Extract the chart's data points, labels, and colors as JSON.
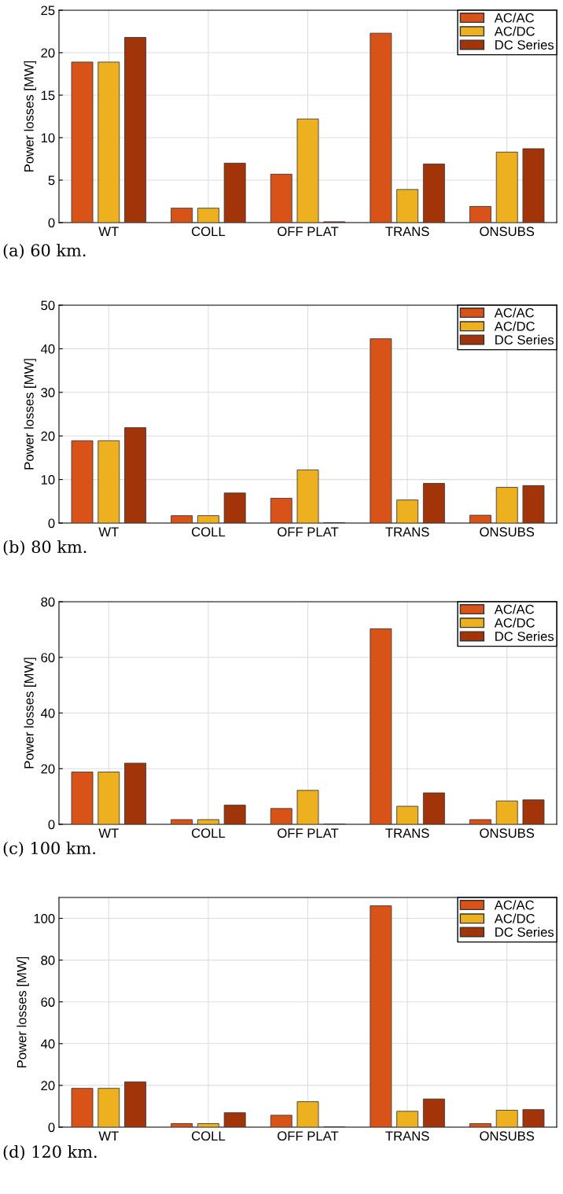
{
  "chart_data": [
    {
      "type": "bar",
      "categories": [
        "WT",
        "COLL",
        "OFF PLAT",
        "TRANS",
        "ONSUBS"
      ],
      "ylabel": "Power losses [MW]",
      "ylim": [
        0,
        25
      ],
      "yticks": [
        0,
        5,
        10,
        15,
        20,
        25
      ],
      "grid": true,
      "legend": "top right",
      "annotations": [
        "(a) 60 km."
      ],
      "series": [
        {
          "name": "AC/AC",
          "color": "#d95319",
          "values": [
            18.9,
            1.7,
            5.7,
            22.3,
            1.9
          ]
        },
        {
          "name": "AC/DC",
          "color": "#edb120",
          "values": [
            18.9,
            1.7,
            12.2,
            3.9,
            8.3
          ]
        },
        {
          "name": "DC Series",
          "color": "#a2340a",
          "values": [
            21.8,
            7.0,
            0.1,
            6.9,
            8.7
          ]
        }
      ]
    },
    {
      "type": "bar",
      "categories": [
        "WT",
        "COLL",
        "OFF PLAT",
        "TRANS",
        "ONSUBS"
      ],
      "ylabel": "Power losses [MW]",
      "ylim": [
        0,
        50
      ],
      "yticks": [
        0,
        10,
        20,
        30,
        40,
        50
      ],
      "grid": true,
      "legend": "top right",
      "annotations": [
        "(b) 80 km."
      ],
      "series": [
        {
          "name": "AC/AC",
          "color": "#d95319",
          "values": [
            18.9,
            1.7,
            5.7,
            42.3,
            1.8
          ]
        },
        {
          "name": "AC/DC",
          "color": "#edb120",
          "values": [
            18.9,
            1.7,
            12.2,
            5.3,
            8.2
          ]
        },
        {
          "name": "DC Series",
          "color": "#a2340a",
          "values": [
            21.9,
            6.9,
            0.1,
            9.1,
            8.6
          ]
        }
      ]
    },
    {
      "type": "bar",
      "categories": [
        "WT",
        "COLL",
        "OFF PLAT",
        "TRANS",
        "ONSUBS"
      ],
      "ylabel": "Power losses [MW]",
      "ylim": [
        0,
        80
      ],
      "yticks": [
        0,
        20,
        40,
        60,
        80
      ],
      "grid": true,
      "legend": "top right",
      "annotations": [
        "(c) 100 km."
      ],
      "series": [
        {
          "name": "AC/AC",
          "color": "#d95319",
          "values": [
            18.8,
            1.7,
            5.7,
            70.3,
            1.7
          ]
        },
        {
          "name": "AC/DC",
          "color": "#edb120",
          "values": [
            18.8,
            1.7,
            12.2,
            6.5,
            8.4
          ]
        },
        {
          "name": "DC Series",
          "color": "#a2340a",
          "values": [
            22.0,
            6.9,
            0.1,
            11.3,
            8.8
          ]
        }
      ]
    },
    {
      "type": "bar",
      "categories": [
        "WT",
        "COLL",
        "OFF PLAT",
        "TRANS",
        "ONSUBS"
      ],
      "ylabel": "Power losses [MW]",
      "ylim": [
        0,
        110
      ],
      "yticks": [
        0,
        20,
        40,
        60,
        80,
        100
      ],
      "grid": true,
      "legend": "top right",
      "annotations": [
        "(d) 120 km."
      ],
      "series": [
        {
          "name": "AC/AC",
          "color": "#d95319",
          "values": [
            18.6,
            1.7,
            5.7,
            106,
            1.7
          ]
        },
        {
          "name": "AC/DC",
          "color": "#edb120",
          "values": [
            18.6,
            1.7,
            12.2,
            7.6,
            8.1
          ]
        },
        {
          "name": "DC Series",
          "color": "#a2340a",
          "values": [
            21.7,
            6.9,
            0.1,
            13.5,
            8.4
          ]
        }
      ]
    }
  ]
}
